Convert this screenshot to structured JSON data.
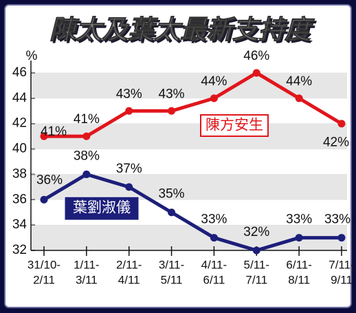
{
  "chart_data": {
    "type": "line",
    "title": "陳太及葉太最新支持度",
    "y_label": "%",
    "categories": [
      [
        "31/10-",
        "2/11"
      ],
      [
        "1/11-",
        "3/11"
      ],
      [
        "2/11-",
        "4/11"
      ],
      [
        "3/11-",
        "5/11"
      ],
      [
        "4/11-",
        "6/11"
      ],
      [
        "5/11-",
        "7/11"
      ],
      [
        "6/11-",
        "8/11"
      ],
      [
        "7/11-",
        "9/11"
      ]
    ],
    "series": [
      {
        "name": "陳方安生",
        "color": "#e0161c",
        "values": [
          41,
          41,
          43,
          43,
          44,
          46,
          44,
          42
        ],
        "value_labels": [
          "41%",
          "41%",
          "43%",
          "43%",
          "44%",
          "46%",
          "44%",
          "42%"
        ]
      },
      {
        "name": "葉劉淑儀",
        "color": "#1c1f7a",
        "values": [
          36,
          38,
          37,
          35,
          33,
          32,
          33,
          33
        ],
        "value_labels": [
          "36%",
          "38%",
          "37%",
          "35%",
          "33%",
          "32%",
          "33%",
          "33%"
        ]
      }
    ],
    "ylim": [
      32,
      46
    ],
    "yticks": [
      32,
      34,
      36,
      38,
      40,
      42,
      44,
      46
    ],
    "grid": true
  }
}
